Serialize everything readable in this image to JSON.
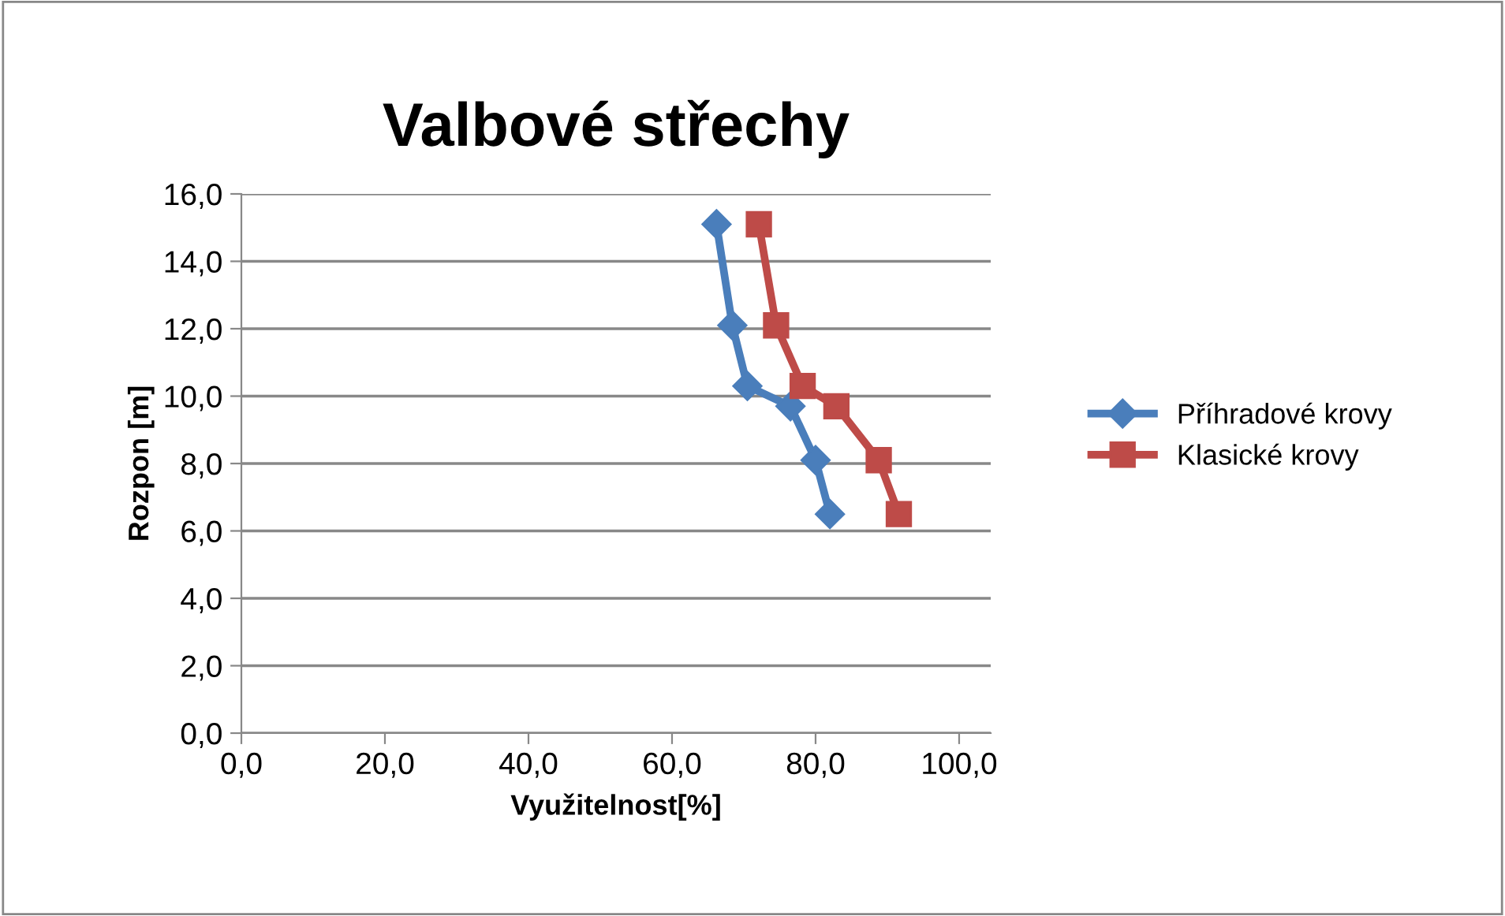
{
  "chart_data": {
    "type": "line",
    "title": "Valbové střechy",
    "xlabel": "Využitelnost[%]",
    "ylabel": "Rozpon [m]",
    "series": [
      {
        "name": "Příhradové krovy",
        "color": "#4a7ebb",
        "marker": "diamond",
        "x": [
          66.2,
          68.4,
          70.5,
          76.5,
          80.0,
          82.0
        ],
        "values": [
          15.1,
          12.1,
          10.3,
          9.7,
          8.1,
          6.5
        ]
      },
      {
        "name": "Klasické krovy",
        "color": "#be4b48",
        "marker": "square",
        "x": [
          72.1,
          74.5,
          78.2,
          82.9,
          88.8,
          91.6
        ],
        "values": [
          15.1,
          12.1,
          10.3,
          9.7,
          8.1,
          6.5
        ]
      }
    ],
    "xlim": [
      0,
      104.4
    ],
    "xticks": [
      {
        "value": 0,
        "label": "0,0"
      },
      {
        "value": 20,
        "label": "20,0"
      },
      {
        "value": 40,
        "label": "40,0"
      },
      {
        "value": 60,
        "label": "60,0"
      },
      {
        "value": 80,
        "label": "80,0"
      },
      {
        "value": 100,
        "label": "100,0"
      }
    ],
    "ylim": [
      0,
      16
    ],
    "yticks": [
      {
        "value": 0,
        "label": "0,0"
      },
      {
        "value": 2,
        "label": "2,0"
      },
      {
        "value": 4,
        "label": "4,0"
      },
      {
        "value": 6,
        "label": "6,0"
      },
      {
        "value": 8,
        "label": "8,0"
      },
      {
        "value": 10,
        "label": "10,0"
      },
      {
        "value": 12,
        "label": "12,0"
      },
      {
        "value": 14,
        "label": "14,0"
      },
      {
        "value": 16,
        "label": "16,0"
      }
    ],
    "grid": "y",
    "legend": "right",
    "line_style": "solid"
  }
}
